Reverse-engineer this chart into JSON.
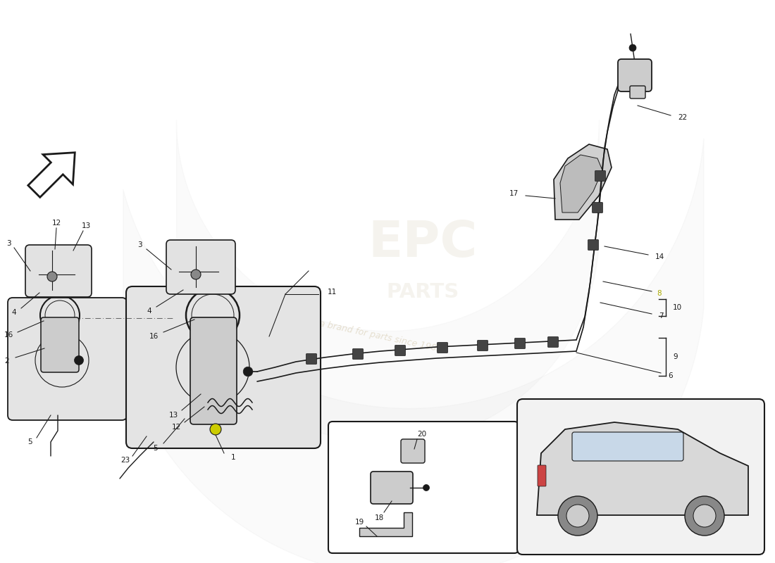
{
  "bg_color": "#ffffff",
  "line_color": "#1a1a1a",
  "light_gray": "#c8c8c8",
  "mid_gray": "#888888",
  "dark_gray": "#555555",
  "tank_fill": "#e4e4e4",
  "pump_fill": "#cccccc",
  "bracket_fill": "#d0d0d0",
  "car_fill": "#d8d8d8",
  "car_window": "#c8d8e8",
  "rear_light": "#cc4444",
  "yellow_label": "#aaaa00",
  "watermark_text": "#a09060",
  "arrow_fill": "#ffffff"
}
